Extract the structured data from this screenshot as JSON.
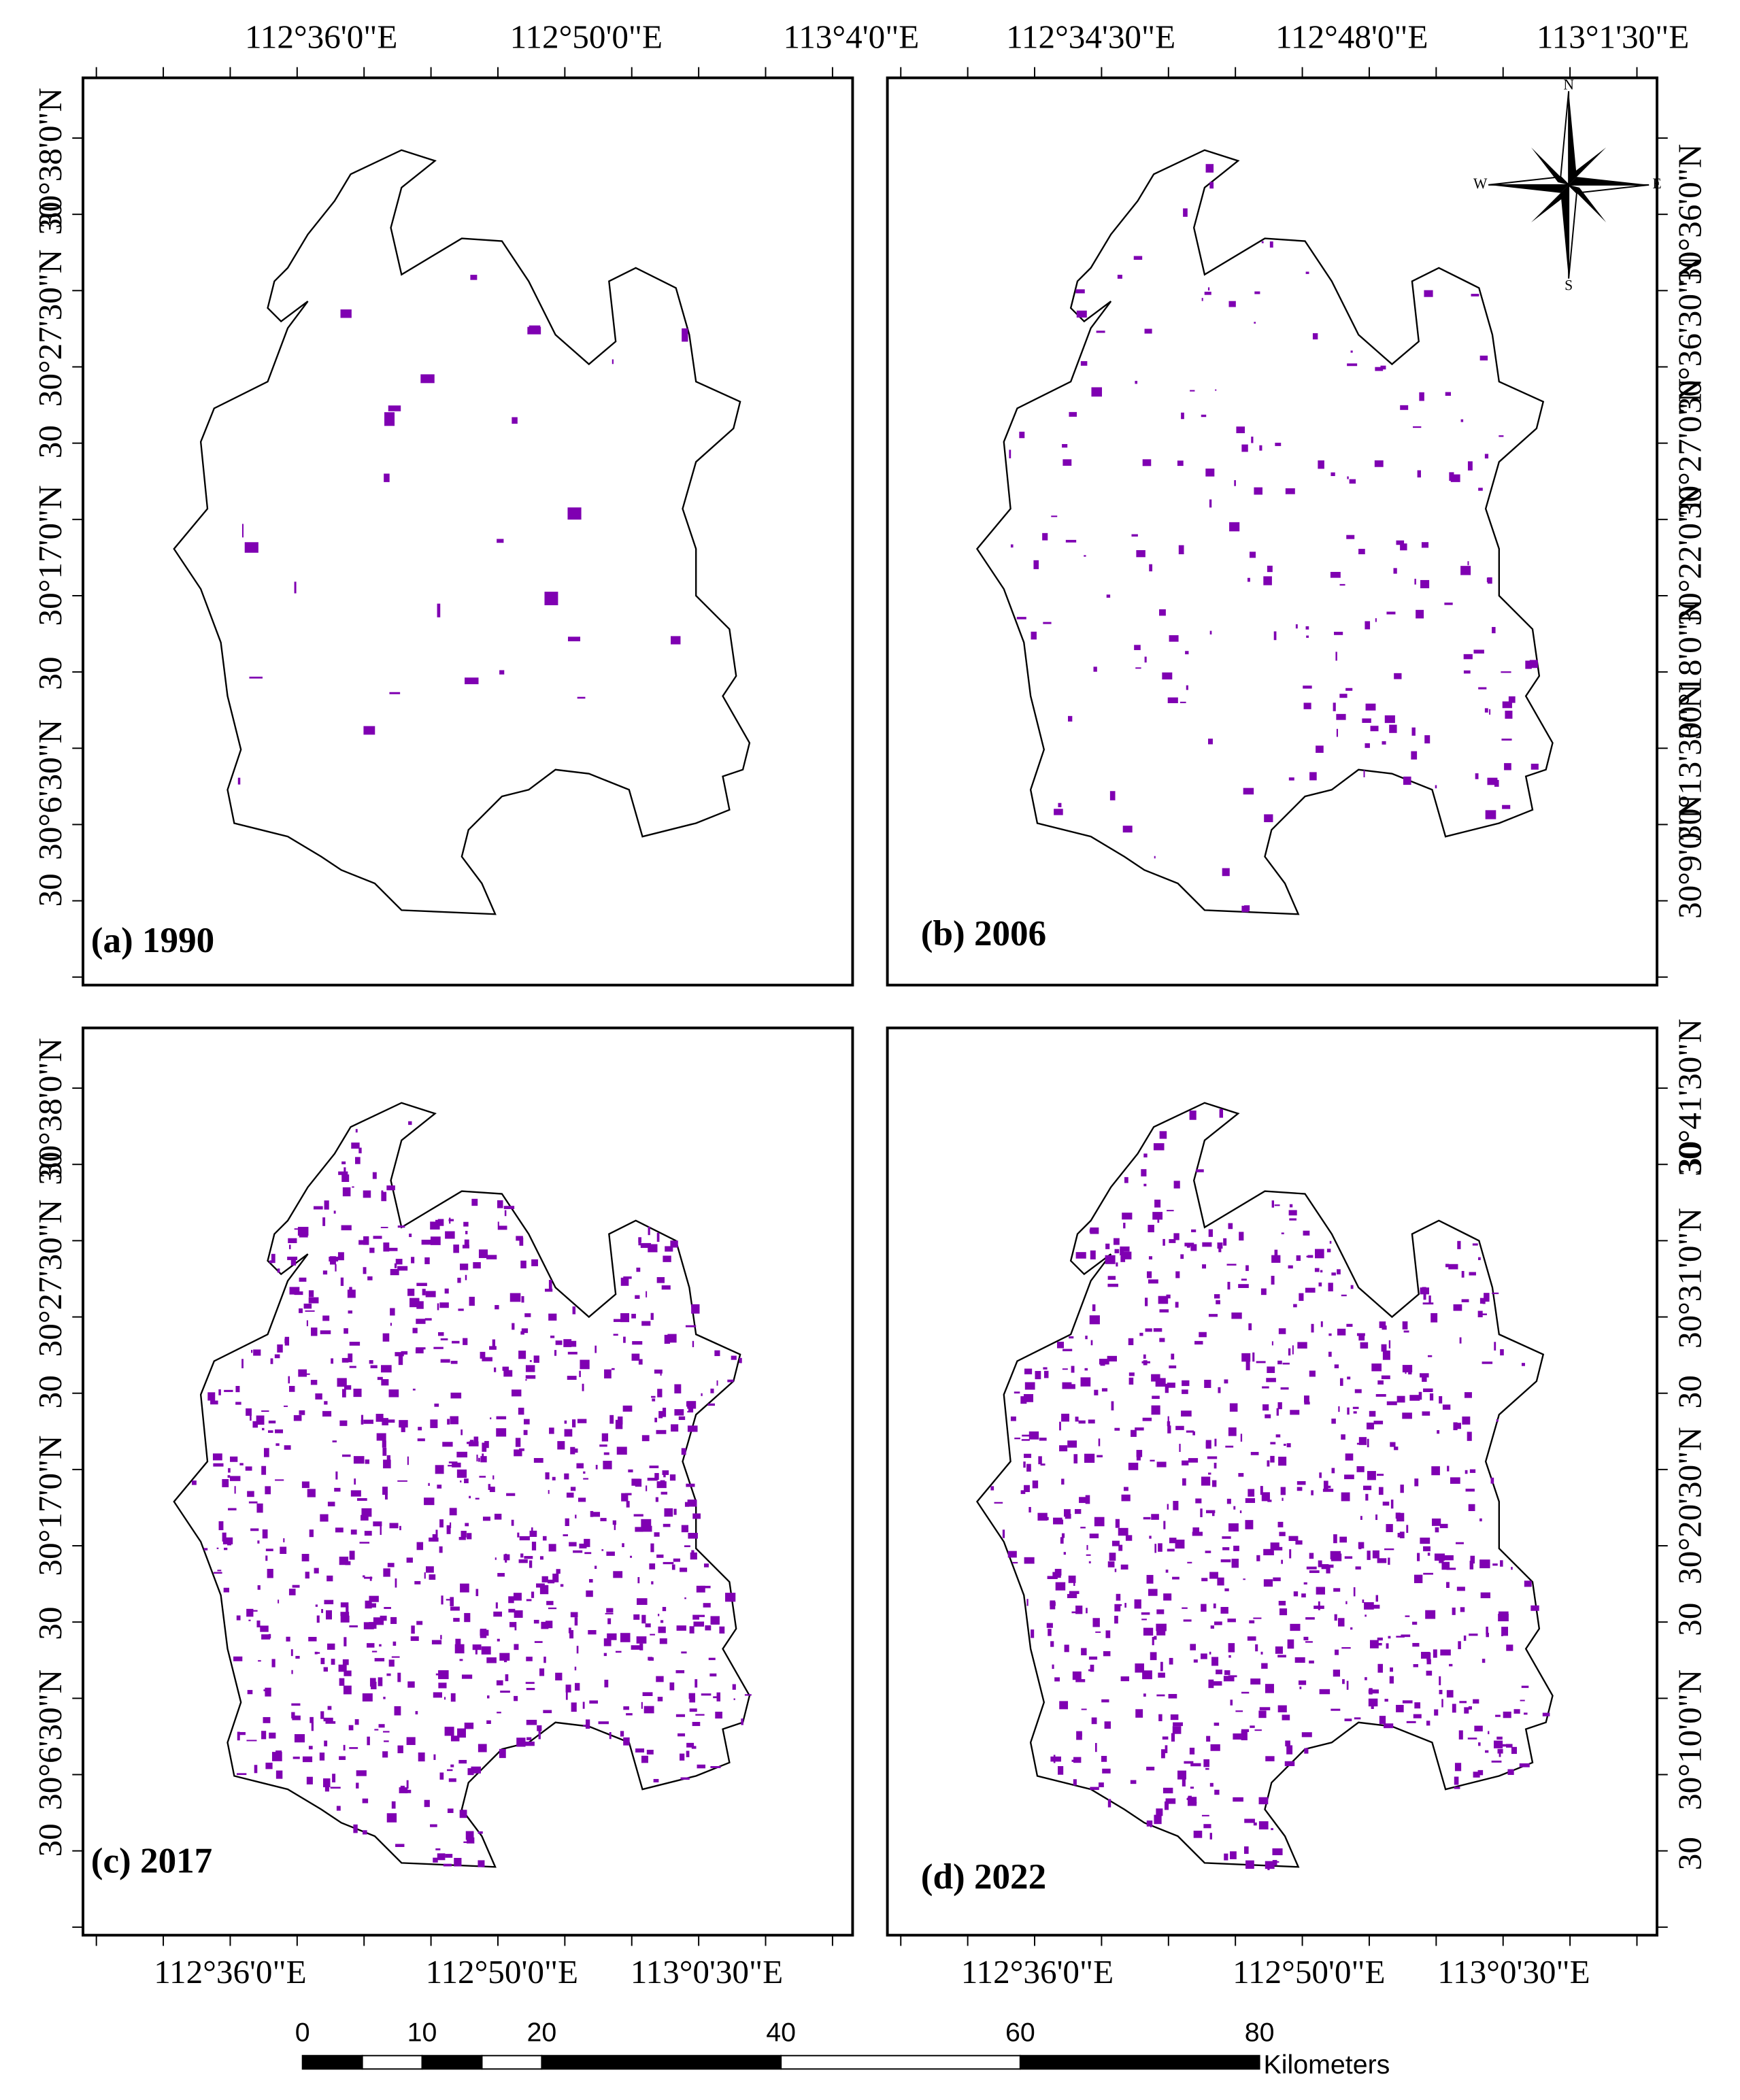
{
  "panels": [
    {
      "label": "(a) 1990",
      "top_labels": [
        "112°36'0\"E",
        "112°50'0\"E",
        "113°4'0\"E"
      ],
      "left_labels": [
        "30°38'0\"N",
        "30",
        "30°27'30\"N",
        "30",
        "30°17'0\"N",
        "30",
        "30°6'30\"N",
        "30"
      ]
    },
    {
      "label": "(b) 2006",
      "top_labels": [
        "112°34'30\"E",
        "112°48'0\"E",
        "113°1'30\"E"
      ],
      "right_labels": [
        "30°36'0\"N",
        "30°36'30\"N",
        "30°27'0\"N",
        "30°22'0\"N",
        "30°18'0\"N",
        "30°13'30\"N",
        "30°9'0\"N"
      ]
    },
    {
      "label": "(c) 2017",
      "left_labels": [
        "30°38'0\"N",
        "30",
        "30°27'30\"N",
        "30",
        "30°17'0\"N",
        "30",
        "30°6'30\"N",
        "30"
      ],
      "bottom_labels": [
        "112°36'0\"E",
        "112°50'0\"E",
        "113°0'30\"E"
      ]
    },
    {
      "label": "(d) 2022",
      "right_labels": [
        "30°41'30\"N",
        "30",
        "30°31'0\"N",
        "30",
        "30°20'30\"N",
        "30",
        "30°10'0\"N",
        "30"
      ],
      "bottom_labels": [
        "112°36'0\"E",
        "112°50'0\"E",
        "113°0'30\"E"
      ]
    }
  ],
  "north_arrow": {
    "n": "N",
    "e": "E",
    "s": "S",
    "w": "W"
  },
  "scale_bar": {
    "ticks": [
      0,
      10,
      20,
      40,
      60,
      80
    ],
    "unit": "Kilometers"
  }
}
